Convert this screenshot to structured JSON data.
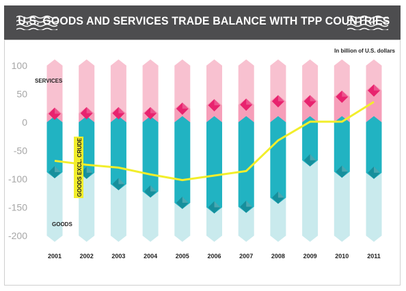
{
  "header": {
    "title": "U.S. GOODS AND SERVICES TRADE BALANCE WITH TPP COUNTRIES",
    "background": "#4d4d4f"
  },
  "unit_note": "In billion of U.S. dollars",
  "colors": {
    "services_light": "#f7b6c8",
    "services_marker": "#e8226e",
    "goods_dark": "#21b3c2",
    "goods_light": "#bfe6ea",
    "goods_marker": "#168f9c",
    "line": "#f2ee2b",
    "label_highlight": "#f2ee2b"
  },
  "chart_data": {
    "type": "bar",
    "title": "U.S. GOODS AND SERVICES TRADE BALANCE WITH TPP COUNTRIES",
    "ylabel": "In billion of U.S. dollars",
    "ylim": [
      -200,
      100
    ],
    "yticks": [
      "100",
      "50",
      "0",
      "-50",
      "-100",
      "-150",
      "-200"
    ],
    "grid": false,
    "categories": [
      "2001",
      "2002",
      "2003",
      "2004",
      "2005",
      "2006",
      "2007",
      "2008",
      "2009",
      "2010",
      "2011"
    ],
    "series": [
      {
        "name": "SERVICES",
        "type": "bar",
        "values": [
          15,
          16,
          16,
          16,
          24,
          30,
          31,
          37,
          37,
          45,
          56
        ]
      },
      {
        "name": "GOODS",
        "type": "bar",
        "values": [
          -88,
          -89,
          -109,
          -122,
          -142,
          -150,
          -149,
          -133,
          -67,
          -87,
          -89
        ]
      },
      {
        "name": "GOODS EXCL. CRUDE",
        "type": "line",
        "values": [
          -68,
          -75,
          -80,
          -92,
          -102,
          -94,
          -86,
          -32,
          1,
          1,
          36
        ]
      }
    ]
  }
}
